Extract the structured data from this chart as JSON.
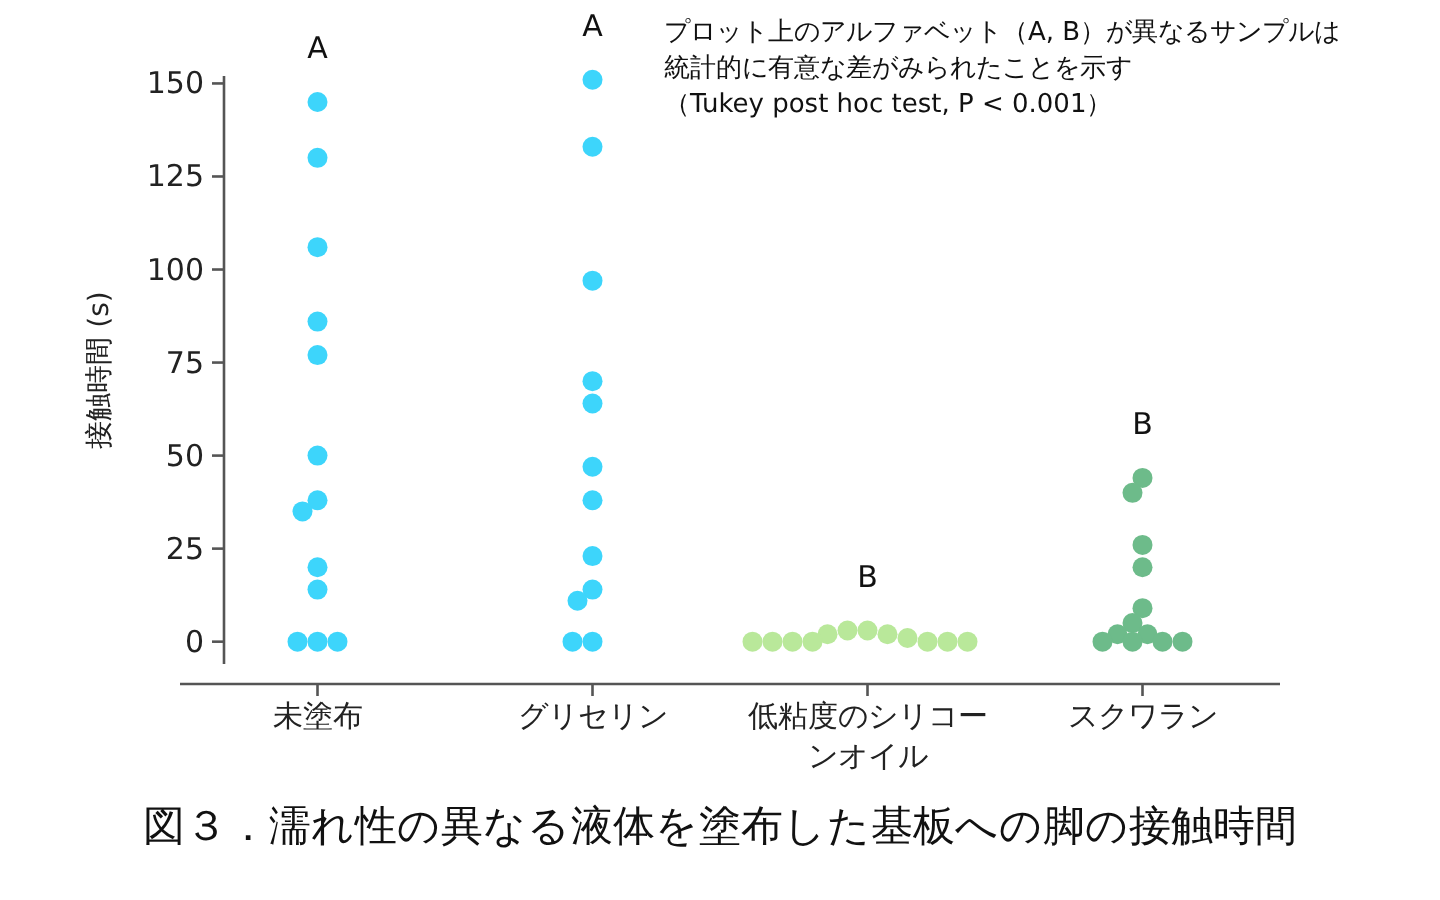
{
  "chart_data": {
    "type": "scatter",
    "title": "図３．濡れ性の異なる液体を塗布した基板への脚の接触時間",
    "ylabel": "接触時間 (s)",
    "categories": [
      "未塗布",
      "グリセリン",
      "低粘度のシリコーンオイル",
      "スクワラン"
    ],
    "series": [
      {
        "color": "#3dd5fb",
        "x": [
          "未塗布",
          "未塗布",
          "未塗布",
          "未塗布",
          "未塗布",
          "未塗布",
          "未塗布",
          "未塗布",
          "未塗布",
          "未塗布",
          "未塗布",
          "未塗布",
          "未塗布"
        ],
        "values": [
          145,
          130,
          106,
          86,
          77,
          50,
          38,
          35,
          20,
          14,
          0,
          0,
          0
        ]
      },
      {
        "color": "#3dd5fb",
        "x": [
          "グリセリン",
          "グリセリン",
          "グリセリン",
          "グリセリン",
          "グリセリン",
          "グリセリン",
          "グリセリン",
          "グリセリン",
          "グリセリン",
          "グリセリン",
          "グリセリン",
          "グリセリン"
        ],
        "values": [
          151,
          133,
          97,
          70,
          64,
          47,
          38,
          23,
          14,
          11,
          0,
          0
        ]
      },
      {
        "color": "#b9e89a",
        "x": [
          "低粘度のシリコーンオイル",
          "低粘度のシリコーンオイル",
          "低粘度のシリコーンオイル",
          "低粘度のシリコーンオイル",
          "低粘度のシリコーンオイル",
          "低粘度のシリコーンオイル",
          "低粘度のシリコーンオイル",
          "低粘度のシリコーンオイル",
          "低粘度のシリコーンオイル",
          "低粘度のシリコーンオイル",
          "低粘度のシリコーンオイル",
          "低粘度のシリコーンオイル"
        ],
        "values": [
          3,
          3,
          2,
          2,
          1,
          0,
          0,
          0,
          0,
          0,
          0,
          0
        ]
      },
      {
        "color": "#6dbb8a",
        "x": [
          "スクワラン",
          "スクワラン",
          "スクワラン",
          "スクワラン",
          "スクワラン",
          "スクワラン",
          "スクワラン",
          "スクワラン",
          "スクワラン",
          "スクワラン",
          "スクワラン",
          "スクワラン"
        ],
        "values": [
          44,
          40,
          26,
          20,
          9,
          5,
          2,
          2,
          0,
          0,
          0,
          0
        ]
      }
    ],
    "ylim": [
      -6,
      152
    ],
    "yticks": [
      0,
      25,
      50,
      75,
      100,
      125,
      150
    ],
    "grid": false,
    "annotations": [
      "A",
      "A",
      "B",
      "B",
      "プロット上のアルファベット（A, B）が異なるサンプルは統計的に有意な差がみられたことを示す",
      "（Tukey post hoc test, P < 0.001）"
    ]
  }
}
